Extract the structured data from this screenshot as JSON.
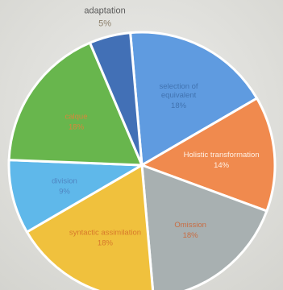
{
  "chart_data": {
    "type": "pie",
    "title": "",
    "slices": [
      {
        "label": "selection of equivalent",
        "value": 18,
        "display": "18%",
        "color": "#5f9be0",
        "text_color": "#4173b0"
      },
      {
        "label": "Holistic transformation",
        "value": 14,
        "display": "14%",
        "color": "#f08a4e",
        "text_color": "#fff1e6"
      },
      {
        "label": "Omission",
        "value": 18,
        "display": "18%",
        "color": "#a8b0b1",
        "text_color": "#c86d43"
      },
      {
        "label": "syntactic assimilation",
        "value": 18,
        "display": "18%",
        "color": "#f0c13d",
        "text_color": "#d7792b"
      },
      {
        "label": "division",
        "value": 9,
        "display": "9%",
        "color": "#5fb8ea",
        "text_color": "#4f86c2"
      },
      {
        "label": "calque",
        "value": 18,
        "display": "18%",
        "color": "#68b64d",
        "text_color": "#d9863b"
      },
      {
        "label": "adaptation",
        "value": 5,
        "display": "5%",
        "color": "#4270b6",
        "text_color": "#5b5b5b"
      }
    ]
  }
}
